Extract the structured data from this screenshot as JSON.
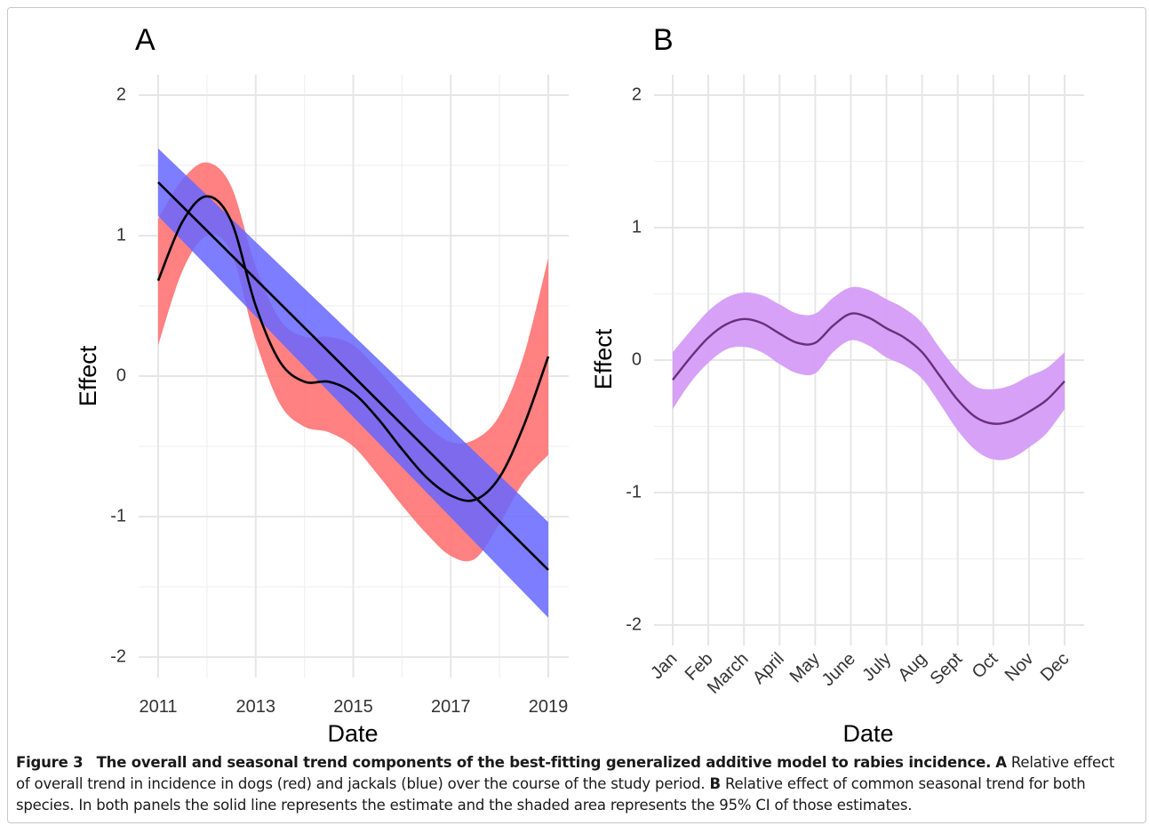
{
  "caption": {
    "figure_label": "Figure 3",
    "title": "The overall and seasonal trend components of the best-fitting generalized additive model to rabies incidence.",
    "part_a_label": "A",
    "part_a_text": "Relative effect of overall trend in incidence in dogs (red) and jackals (blue) over the course of the study period.",
    "part_b_label": "B",
    "part_b_text": "Relative effect of common seasonal trend for both species. In both panels the solid line represents the estimate and the shaded area represents the 95% CI of those estimates."
  },
  "colors": {
    "dogs_ribbon": "#ff6b6b",
    "jackals_ribbon": "#6666ff",
    "seasonal_ribbon": "#d49cf7",
    "seasonal_line": "#6a2f7a",
    "estimate_line": "#000000"
  },
  "chart_data": [
    {
      "type": "line",
      "panel_label": "A",
      "xlabel": "Date",
      "ylabel": "Effect",
      "xlim": [
        2011,
        2019
      ],
      "ylim": [
        -2,
        2
      ],
      "x_ticks": [
        2011,
        2013,
        2015,
        2017,
        2019
      ],
      "y_ticks": [
        -2,
        -1,
        0,
        1,
        2
      ],
      "grid": true,
      "series": [
        {
          "style": "ribbon+line",
          "color_key": "dogs_ribbon",
          "x": [
            2011,
            2011.5,
            2012,
            2012.5,
            2013,
            2013.5,
            2014,
            2014.5,
            2015,
            2015.5,
            2016,
            2016.5,
            2017,
            2017.5,
            2018,
            2018.5,
            2019
          ],
          "estimate": [
            0.68,
            1.1,
            1.28,
            1.1,
            0.5,
            0.1,
            -0.04,
            -0.04,
            -0.12,
            -0.3,
            -0.52,
            -0.72,
            -0.85,
            -0.88,
            -0.72,
            -0.35,
            0.14
          ],
          "lower": [
            0.22,
            0.75,
            1.0,
            0.88,
            0.25,
            -0.2,
            -0.36,
            -0.4,
            -0.5,
            -0.7,
            -0.92,
            -1.12,
            -1.28,
            -1.3,
            -1.05,
            -0.75,
            -0.56
          ],
          "upper": [
            1.12,
            1.4,
            1.52,
            1.35,
            0.78,
            0.4,
            0.28,
            0.28,
            0.22,
            0.05,
            -0.15,
            -0.35,
            -0.47,
            -0.45,
            -0.28,
            0.15,
            0.84
          ]
        },
        {
          "style": "ribbon+line",
          "color_key": "jackals_ribbon",
          "x": [
            2011,
            2019
          ],
          "estimate": [
            1.38,
            -1.38
          ],
          "lower": [
            1.14,
            -1.72
          ],
          "upper": [
            1.62,
            -1.04
          ]
        }
      ]
    },
    {
      "type": "line",
      "panel_label": "B",
      "xlabel": "Date",
      "ylabel": "Effect",
      "ylim": [
        -2,
        2
      ],
      "y_ticks": [
        -2,
        -1,
        0,
        1,
        2
      ],
      "grid": true,
      "categories": [
        "Jan",
        "Feb",
        "March",
        "April",
        "May",
        "June",
        "July",
        "Aug",
        "Sept",
        "Oct",
        "Nov",
        "Dec"
      ],
      "series": [
        {
          "style": "ribbon+line",
          "color_key": "seasonal_ribbon",
          "x": [
            0,
            0.5,
            1,
            1.5,
            2,
            2.5,
            3,
            3.5,
            4,
            4.5,
            5,
            5.5,
            6,
            6.5,
            7,
            7.5,
            8,
            8.5,
            9,
            9.5,
            10,
            10.5,
            11
          ],
          "estimate": [
            -0.15,
            0.02,
            0.17,
            0.27,
            0.31,
            0.28,
            0.2,
            0.13,
            0.13,
            0.26,
            0.35,
            0.32,
            0.24,
            0.17,
            0.06,
            -0.12,
            -0.3,
            -0.43,
            -0.48,
            -0.46,
            -0.39,
            -0.3,
            -0.16
          ],
          "lower": [
            -0.37,
            -0.17,
            -0.02,
            0.08,
            0.1,
            0.06,
            -0.03,
            -0.1,
            -0.1,
            0.06,
            0.15,
            0.11,
            0.02,
            -0.04,
            -0.14,
            -0.33,
            -0.53,
            -0.68,
            -0.75,
            -0.74,
            -0.66,
            -0.55,
            -0.37
          ],
          "upper": [
            0.06,
            0.22,
            0.37,
            0.47,
            0.51,
            0.49,
            0.42,
            0.35,
            0.35,
            0.47,
            0.55,
            0.53,
            0.46,
            0.39,
            0.28,
            0.09,
            -0.08,
            -0.2,
            -0.22,
            -0.19,
            -0.12,
            -0.06,
            0.06
          ]
        }
      ]
    }
  ]
}
